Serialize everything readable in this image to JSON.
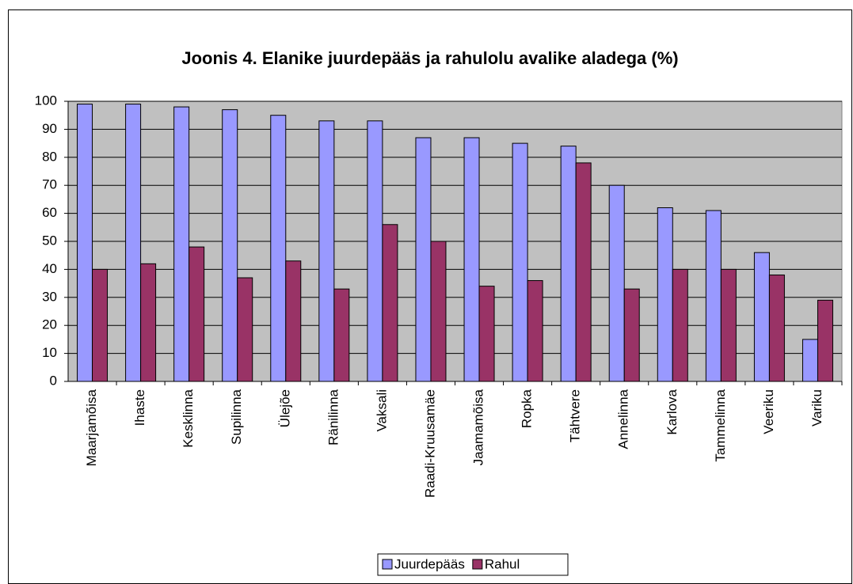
{
  "chart_data": {
    "type": "bar",
    "title": "Joonis 4. Elanike juurdepääs ja rahulolu avalike aladega (%)",
    "categories": [
      "Maarjamõisa",
      "Ihaste",
      "Kesklinna",
      "Supilinna",
      "Ülejõe",
      "Ränilinna",
      "Vaksali",
      "Raadi-Kruusamäe",
      "Jaamamõisa",
      "Ropka",
      "Tähtvere",
      "Annelinna",
      "Karlova",
      "Tammelinna",
      "Veeriku",
      "Variku"
    ],
    "series": [
      {
        "name": "Juurdepääs",
        "color": "#9999ff",
        "values": [
          99,
          99,
          98,
          97,
          95,
          93,
          93,
          87,
          87,
          85,
          84,
          70,
          62,
          61,
          46,
          15
        ]
      },
      {
        "name": "Rahul",
        "color": "#993366",
        "values": [
          40,
          42,
          48,
          37,
          43,
          33,
          56,
          50,
          34,
          36,
          78,
          33,
          40,
          40,
          38,
          29
        ]
      }
    ],
    "ylim": [
      0,
      100
    ],
    "yticks": [
      0,
      10,
      20,
      30,
      40,
      50,
      60,
      70,
      80,
      90,
      100
    ],
    "grid": true,
    "legend": "bottom",
    "plot_background": "#c0c0c0"
  }
}
